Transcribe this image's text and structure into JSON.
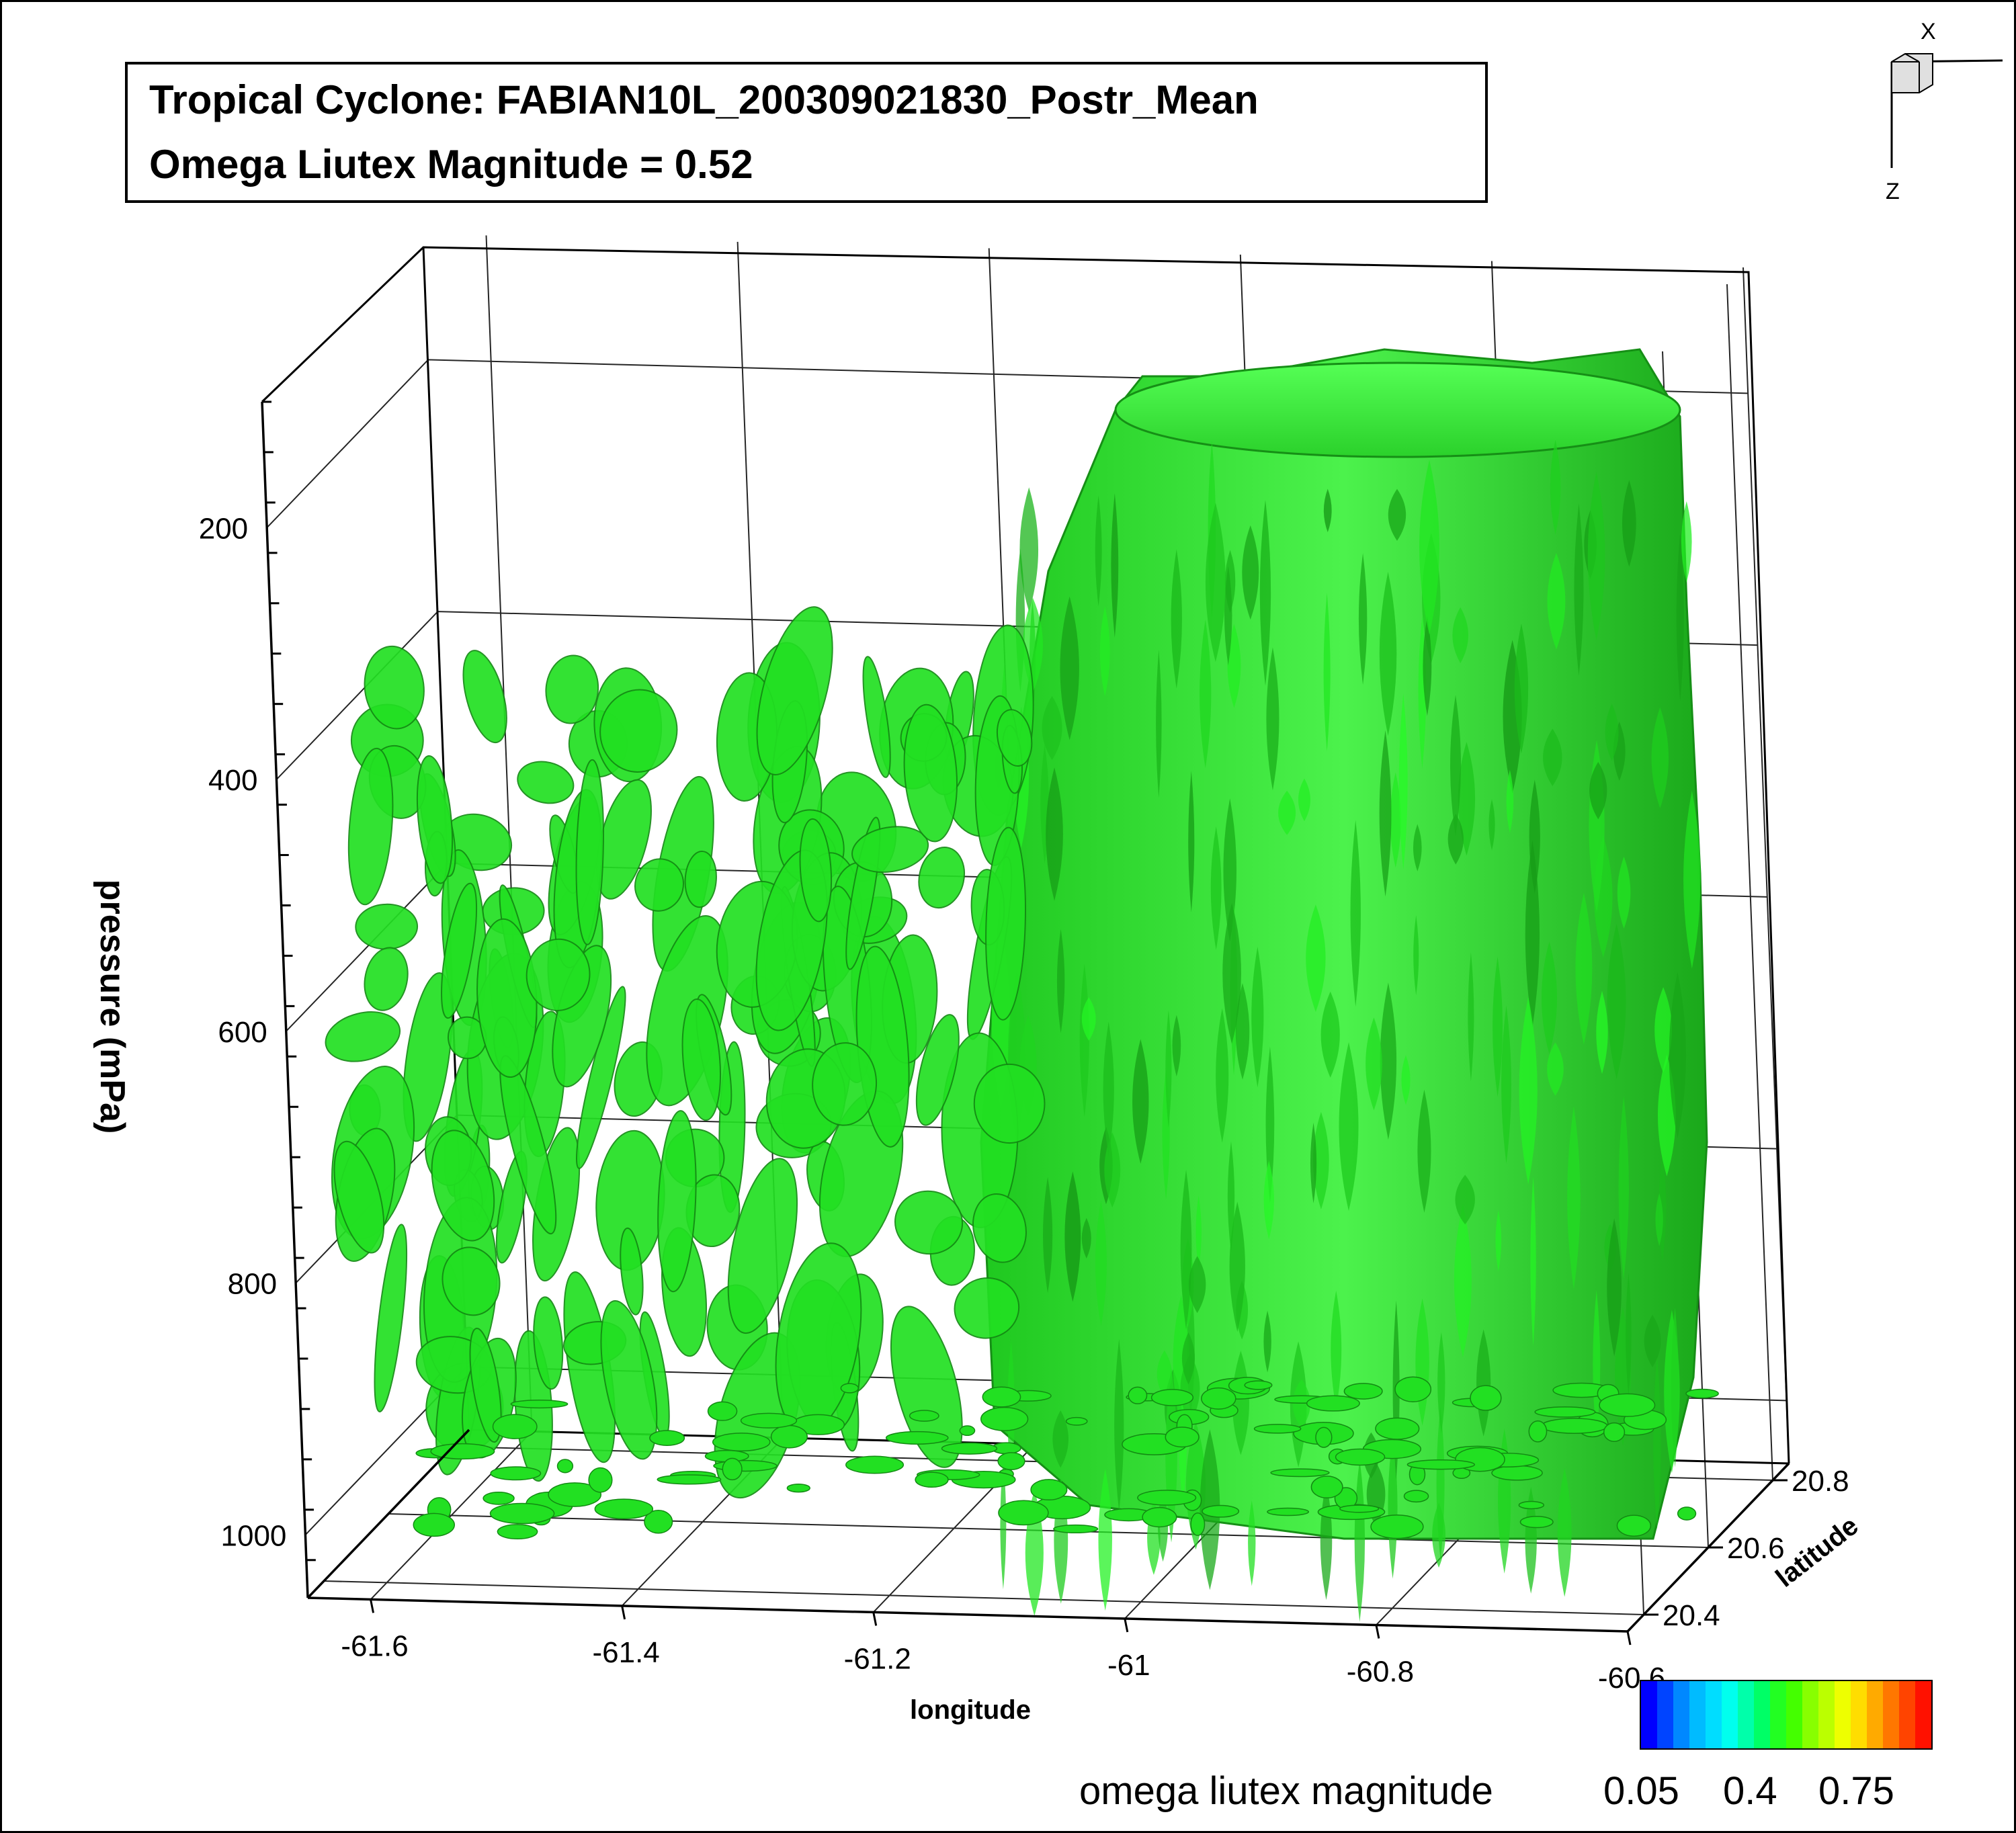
{
  "chart_data": {
    "type": "isosurface-3d",
    "title": "Tropical Cyclone: FABIAN10L_200309021830_Postr_Mean",
    "subtitle": "Omega Liutex Magnitude = 0.52",
    "xlabel": "longitude",
    "ylabel": "latitude",
    "zlabel": "pressure (mPa)",
    "x_ticks": [
      "-61.6",
      "-61.4",
      "-61.2",
      "-61",
      "-60.8",
      "-60.6"
    ],
    "y_ticks": [
      "20.4",
      "20.6",
      "20.8"
    ],
    "z_ticks": [
      "200",
      "400",
      "600",
      "800",
      "1000"
    ],
    "xlim": [
      -61.65,
      -60.6
    ],
    "ylim": [
      20.35,
      20.85
    ],
    "zlim": [
      100,
      1050
    ],
    "isosurface_value": 0.52,
    "isosurface_color": "#22e022",
    "grid": true,
    "orientation_axes": [
      "X",
      "Z"
    ],
    "colorbar": {
      "label": "omega liutex magnitude",
      "ticks": [
        "0.05",
        "0.4",
        "0.75"
      ],
      "range": [
        0.05,
        0.75
      ],
      "colormap": "rainbow"
    }
  }
}
